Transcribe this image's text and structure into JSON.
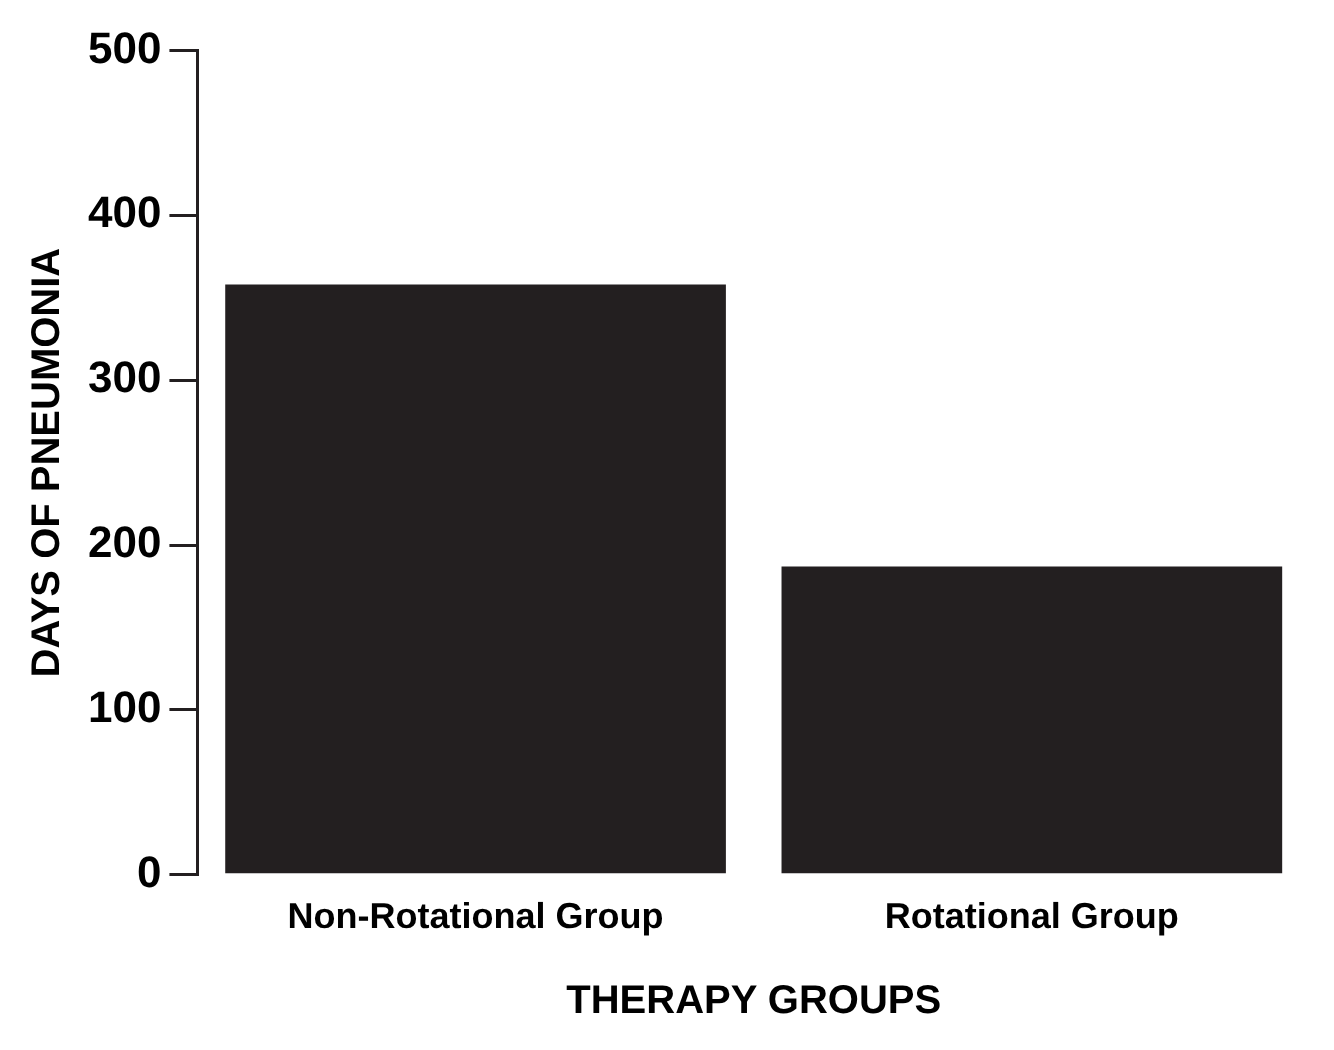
{
  "chart_data": {
    "type": "bar",
    "xlabel": "THERAPY GROUPS",
    "ylabel": "DAYS OF PNEUMONIA",
    "categories": [
      "Non-Rotational Group",
      "Rotational Group"
    ],
    "values": [
      358,
      187
    ],
    "color": "#231f20",
    "ylim": [
      0,
      500
    ],
    "yticks": [
      0,
      100,
      200,
      300,
      400,
      500
    ],
    "grid": false,
    "legend": false
  }
}
